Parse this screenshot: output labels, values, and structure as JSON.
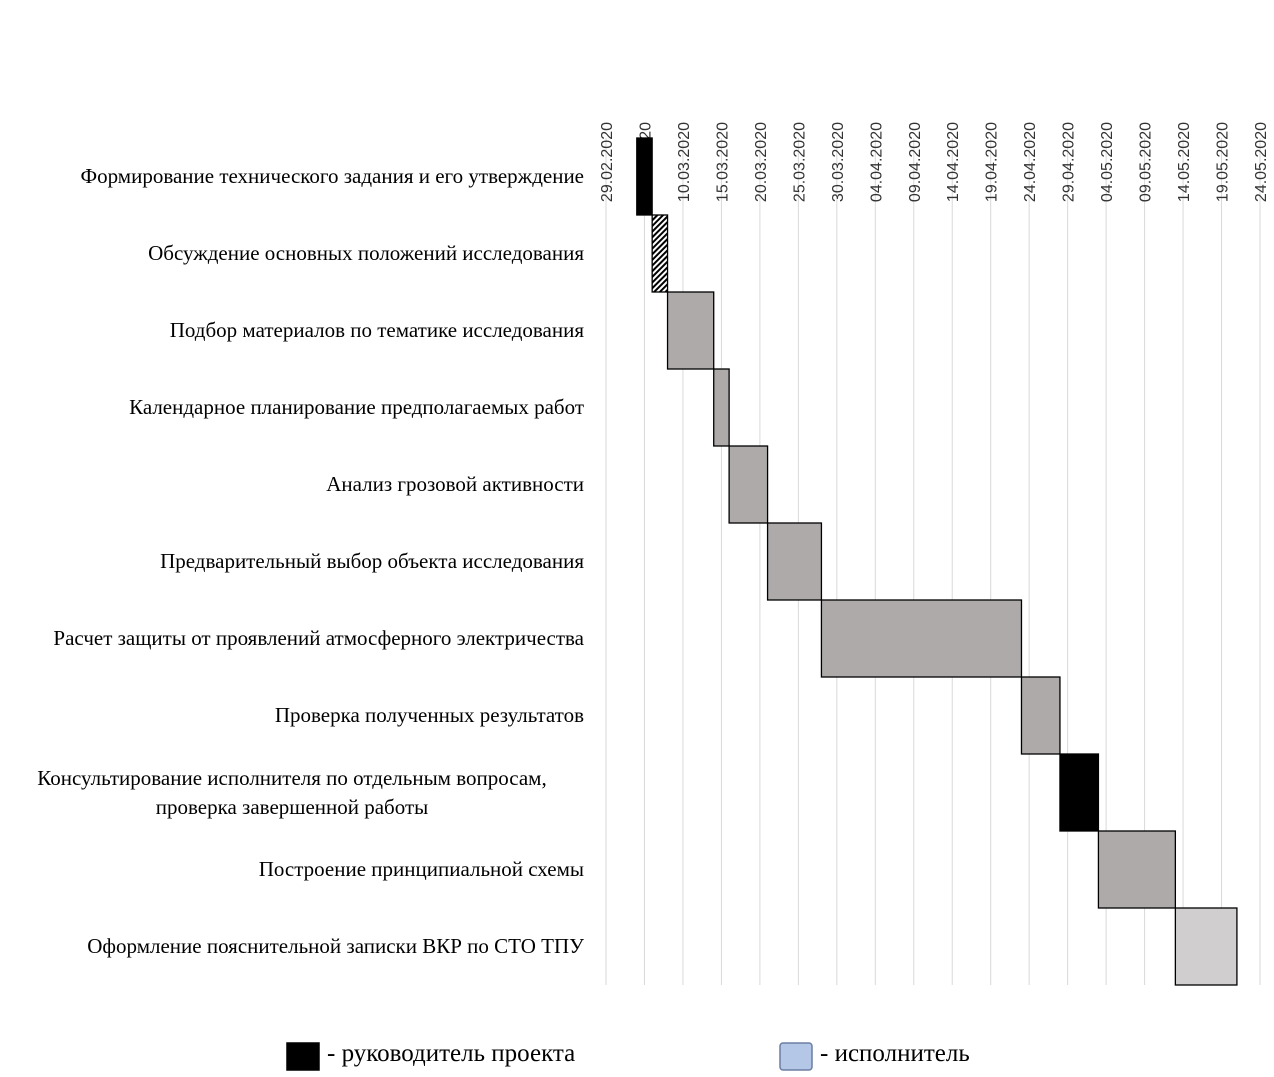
{
  "chart_data": {
    "type": "gantt",
    "tasks": [
      {
        "name": "Формирование технического задания и его утверждение",
        "start": "2020-03-04",
        "end": "2020-03-06",
        "color": "#000000"
      },
      {
        "name": "Обсуждение основных положений исследования",
        "start": "2020-03-06",
        "end": "2020-03-08",
        "color": "#000000",
        "pattern": "hatched"
      },
      {
        "name": "Подбор материалов по тематике исследования",
        "start": "2020-03-08",
        "end": "2020-03-14",
        "color": "#aeaaaa"
      },
      {
        "name": "Календарное планирование предполагаемых работ",
        "start": "2020-03-14",
        "end": "2020-03-16",
        "color": "#aeaaaa"
      },
      {
        "name": "Анализ грозовой активности",
        "start": "2020-03-16",
        "end": "2020-03-21",
        "color": "#aeaaaa"
      },
      {
        "name": "Предварительный выбор объекта исследования",
        "start": "2020-03-21",
        "end": "2020-03-28",
        "color": "#aeaaaa"
      },
      {
        "name": "Расчет защиты от проявлений атмосферного электричества",
        "start": "2020-03-28",
        "end": "2020-04-23",
        "color": "#aeaaaa"
      },
      {
        "name": "Проверка полученных результатов ",
        "start": "2020-04-23",
        "end": "2020-04-28",
        "color": "#aeaaaa"
      },
      {
        "name": "Консультирование исполнителя по отдельным вопросам, проверка завершенной работы",
        "start": "2020-04-28",
        "end": "2020-05-03",
        "color": "#000000"
      },
      {
        "name": "Построение принципиальной схемы",
        "start": "2020-05-03",
        "end": "2020-05-13",
        "color": "#aeaaaa"
      },
      {
        "name": "Оформление пояснительной записки ВКР по СТО ТПУ",
        "start": "2020-05-13",
        "end": "2020-05-21",
        "color": "#d0cece"
      }
    ],
    "xlim": [
      "2020-02-29",
      "2020-05-24"
    ],
    "xticks": [
      {
        "value": "2020-02-29",
        "label": "29.02.2020"
      },
      {
        "value": "2020-03-05",
        "label": "05.03.2020"
      },
      {
        "value": "2020-03-10",
        "label": "10.03.2020"
      },
      {
        "value": "2020-03-15",
        "label": "15.03.2020"
      },
      {
        "value": "2020-03-20",
        "label": "20.03.2020"
      },
      {
        "value": "2020-03-25",
        "label": "25.03.2020"
      },
      {
        "value": "2020-03-30",
        "label": "30.03.2020"
      },
      {
        "value": "2020-04-04",
        "label": "04.04.2020"
      },
      {
        "value": "2020-04-09",
        "label": "09.04.2020"
      },
      {
        "value": "2020-04-14",
        "label": "14.04.2020"
      },
      {
        "value": "2020-04-19",
        "label": "19.04.2020"
      },
      {
        "value": "2020-04-24",
        "label": "24.04.2020"
      },
      {
        "value": "2020-04-29",
        "label": "29.04.2020"
      },
      {
        "value": "2020-05-04",
        "label": "04.05.2020"
      },
      {
        "value": "2020-05-09",
        "label": "09.05.2020"
      },
      {
        "value": "2020-05-14",
        "label": "14.05.2020"
      },
      {
        "value": "2020-05-19",
        "label": "19.05.2020"
      },
      {
        "value": "2020-05-24",
        "label": "24.05.2020"
      }
    ],
    "grid": true,
    "legend": [
      {
        "label": "- руководитель проекта",
        "color": "#000000"
      },
      {
        "label": "- исполнитель",
        "color": "#b4c7e7"
      }
    ]
  }
}
